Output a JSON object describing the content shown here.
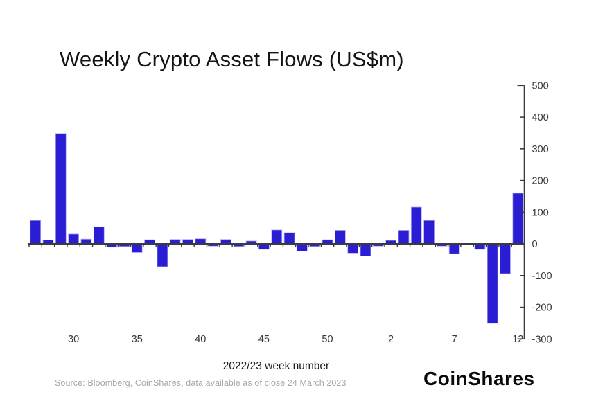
{
  "chart_data": {
    "type": "bar",
    "title": "Weekly Crypto Asset Flows (US$m)",
    "xlabel": "2022/23 week number",
    "ylabel": "",
    "categories": [
      "27",
      "28",
      "29",
      "30",
      "31",
      "32",
      "33",
      "34",
      "35",
      "36",
      "37",
      "38",
      "39",
      "40",
      "41",
      "42",
      "43",
      "44",
      "45",
      "46",
      "47",
      "48",
      "49",
      "50",
      "51",
      "52",
      "53",
      "1",
      "2",
      "3",
      "4",
      "5",
      "6",
      "7",
      "8",
      "9",
      "10",
      "11",
      "12"
    ],
    "values": [
      74,
      12,
      348,
      31,
      15,
      54,
      -10,
      -8,
      -27,
      13,
      -72,
      14,
      14,
      16,
      -7,
      14,
      -8,
      9,
      -17,
      44,
      35,
      -23,
      -8,
      13,
      43,
      -29,
      -38,
      -7,
      11,
      43,
      116,
      74,
      -7,
      -31,
      0,
      -17,
      -251,
      -94,
      160
    ],
    "x_tick_labels": [
      {
        "index": 3,
        "label": "30"
      },
      {
        "index": 8,
        "label": "35"
      },
      {
        "index": 13,
        "label": "40"
      },
      {
        "index": 18,
        "label": "45"
      },
      {
        "index": 23,
        "label": "50"
      },
      {
        "index": 28,
        "label": "2"
      },
      {
        "index": 33,
        "label": "7"
      },
      {
        "index": 38,
        "label": "12"
      }
    ],
    "y_ticks": [
      500,
      400,
      300,
      200,
      100,
      0,
      -100,
      -200,
      -300
    ],
    "ylim": [
      -300,
      500
    ],
    "grid": false,
    "legend": "none",
    "y_axis_side": "right",
    "colors": {
      "bar": "#2a1ed5",
      "bar_edge": "#b5aef0",
      "axis": "#3b3b3b",
      "tick_label": "#383838"
    }
  },
  "footer": {
    "source": "Source: Bloomberg, CoinShares, data available as of close 24 March 2023",
    "logo": "CoinShares"
  }
}
